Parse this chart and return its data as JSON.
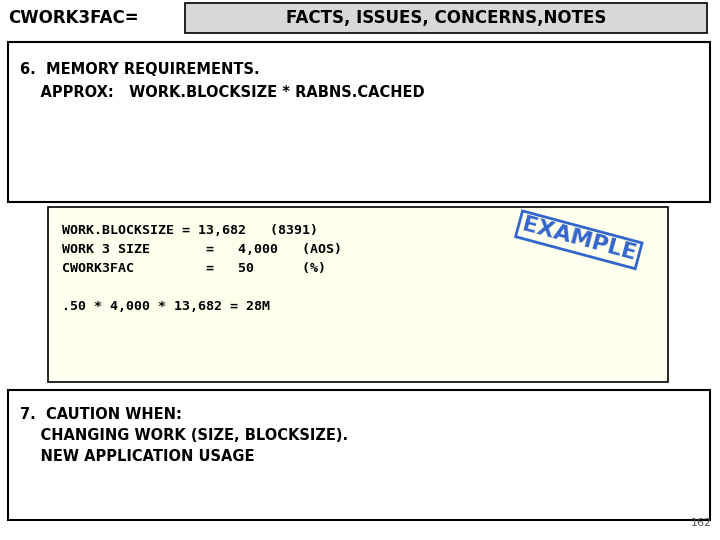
{
  "title_left": "CWORK3FAC=",
  "title_right": "FACTS, ISSUES, CONCERNS,NOTES",
  "box1_text_line1": "6.  MEMORY REQUIREMENTS.",
  "box1_text_line2": "    APPROX:   WORK.BLOCKSIZE * RABNS.CACHED",
  "yellow_box_lines": [
    "WORK.BLOCKSIZE = 13,682   (8391)",
    "WORK 3 SIZE       =   4,000   (AOS)",
    "CWORK3FAC         =   50      (%)",
    "",
    ".50 * 4,000 * 13,682 = 28M"
  ],
  "example_text": "EXAMPLE",
  "box2_text_line1": "7.  CAUTION WHEN:",
  "box2_text_line2": "    CHANGING WORK (SIZE, BLOCKSIZE).",
  "box2_text_line3": "    NEW APPLICATION USAGE",
  "page_number": "162",
  "bg_color": "#ffffff",
  "box_border_color": "#000000",
  "yellow_bg": "#ffffee",
  "header_box_bg": "#d8d8d8",
  "example_color": "#3366cc",
  "title_fontsize": 12,
  "body_fontsize": 10.5,
  "mono_fontsize": 9.5,
  "example_fontsize": 16
}
